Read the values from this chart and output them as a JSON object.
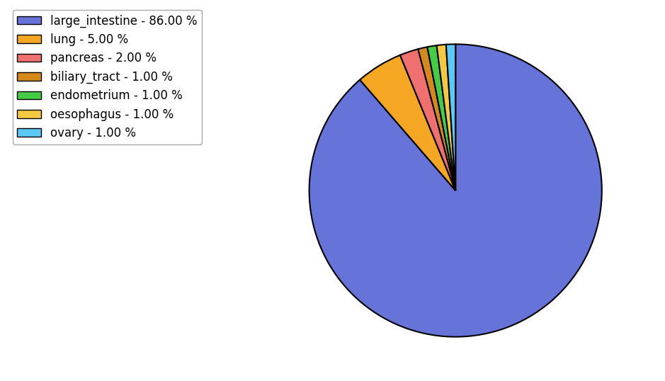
{
  "labels": [
    "large_intestine",
    "lung",
    "pancreas",
    "biliary_tract",
    "endometrium",
    "oesophagus",
    "ovary"
  ],
  "values": [
    86.0,
    5.0,
    2.0,
    1.0,
    1.0,
    1.0,
    1.0
  ],
  "colors": [
    "#6674d9",
    "#f5a623",
    "#f07070",
    "#d4891a",
    "#44cc44",
    "#f5c842",
    "#5bc8f5"
  ],
  "legend_labels": [
    "large_intestine - 86.00 %",
    "lung - 5.00 %",
    "pancreas - 2.00 %",
    "biliary_tract - 1.00 %",
    "endometrium - 1.00 %",
    "oesophagus - 1.00 %",
    "ovary - 1.00 %"
  ],
  "figsize": [
    9.39,
    5.38
  ],
  "dpi": 100,
  "legend_fontsize": 12,
  "startangle": 90,
  "bg_color": "#ffffff"
}
